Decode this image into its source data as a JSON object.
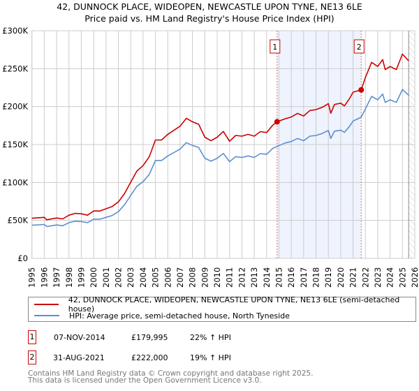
{
  "chart_data": {
    "type": "line",
    "title": "42, DUNNOCK PLACE, WIDEOPEN, NEWCASTLE UPON TYNE, NE13 6LE",
    "subtitle": "Price paid vs. HM Land Registry's House Price Index (HPI)",
    "xlim": [
      1995,
      2026
    ],
    "ylim": [
      0,
      300000
    ],
    "x_ticks": [
      "1995",
      "1996",
      "1997",
      "1998",
      "1999",
      "2000",
      "2001",
      "2002",
      "2003",
      "2004",
      "2005",
      "2006",
      "2007",
      "2008",
      "2009",
      "2010",
      "2011",
      "2012",
      "2013",
      "2014",
      "2015",
      "2016",
      "2017",
      "2018",
      "2019",
      "2020",
      "2021",
      "2022",
      "2023",
      "2024",
      "2025",
      "2026"
    ],
    "y_ticks": [
      {
        "v": 0,
        "label": "£0"
      },
      {
        "v": 50000,
        "label": "£50K"
      },
      {
        "v": 100000,
        "label": "£100K"
      },
      {
        "v": 150000,
        "label": "£150K"
      },
      {
        "v": 200000,
        "label": "£200K"
      },
      {
        "v": 250000,
        "label": "£250K"
      },
      {
        "v": 300000,
        "label": "£300K"
      }
    ],
    "grid": true,
    "x": [
      1995,
      1996,
      1996.2,
      1997,
      1997.5,
      1998,
      1998.5,
      1999,
      1999.5,
      2000,
      2000.5,
      2001,
      2001.5,
      2002,
      2002.5,
      2003,
      2003.5,
      2004,
      2004.5,
      2005,
      2005.5,
      2006,
      2006.5,
      2007,
      2007.5,
      2008,
      2008.5,
      2009,
      2009.5,
      2010,
      2010.5,
      2011,
      2011.5,
      2012,
      2012.5,
      2013,
      2013.5,
      2014,
      2014.5,
      2014.85,
      2015.5,
      2016,
      2016.5,
      2017,
      2017.5,
      2018,
      2018.5,
      2019,
      2019.2,
      2019.5,
      2020,
      2020.3,
      2020.7,
      2021,
      2021.66,
      2022,
      2022.5,
      2023,
      2023.4,
      2023.6,
      2024,
      2024.5,
      2025,
      2025.5
    ],
    "series": [
      {
        "name": "42, DUNNOCK PLACE, WIDEOPEN, NEWCASTLE UPON TYNE, NE13 6LE (semi-detached house)",
        "color": "#cc0000",
        "values": [
          52800,
          54000,
          50800,
          53200,
          52000,
          56900,
          59300,
          58700,
          56900,
          62400,
          62400,
          65300,
          68400,
          74400,
          85500,
          100400,
          115000,
          122200,
          133800,
          156000,
          156000,
          163400,
          168800,
          174200,
          184500,
          180000,
          176700,
          159700,
          155000,
          159700,
          167300,
          154300,
          162000,
          161000,
          163400,
          161000,
          167000,
          165800,
          175500,
          179995,
          184000,
          186300,
          191000,
          187600,
          194800,
          196000,
          199000,
          203900,
          191200,
          202800,
          204500,
          200900,
          210200,
          219000,
          222000,
          238400,
          258300,
          252900,
          262000,
          248700,
          252900,
          248700,
          269200,
          260200
        ]
      },
      {
        "name": "HPI: Average price, semi-detached house, North Tyneside",
        "color": "#5b8fd0",
        "values": [
          43600,
          44600,
          42000,
          44000,
          43000,
          47000,
          49000,
          48500,
          47000,
          51600,
          51600,
          54000,
          56500,
          61500,
          70700,
          83000,
          95000,
          101000,
          110600,
          129000,
          129000,
          135000,
          139500,
          144000,
          152500,
          148800,
          146000,
          132000,
          128000,
          132000,
          138300,
          127500,
          134000,
          133000,
          135000,
          133000,
          138000,
          137000,
          145000,
          147500,
          152000,
          154000,
          158000,
          155000,
          161000,
          162000,
          164500,
          168500,
          158000,
          167600,
          169000,
          166000,
          173700,
          181000,
          186000,
          197000,
          213500,
          209000,
          216500,
          205500,
          209000,
          205500,
          222500,
          215000
        ]
      }
    ],
    "sales": [
      {
        "n": "1",
        "x": 2014.85,
        "date": "07-NOV-2014",
        "price": "£179,995",
        "value": 179995,
        "hpi": "22% ↑ HPI"
      },
      {
        "n": "2",
        "x": 2021.66,
        "date": "31-AUG-2021",
        "price": "£222,000",
        "value": 222000,
        "hpi": "19% ↑ HPI"
      }
    ],
    "data_end": 2025.5,
    "legend_position": "bottom"
  },
  "footer": [
    "Contains HM Land Registry data © Crown copyright and database right 2025.",
    "This data is licensed under the Open Government Licence v3.0."
  ]
}
